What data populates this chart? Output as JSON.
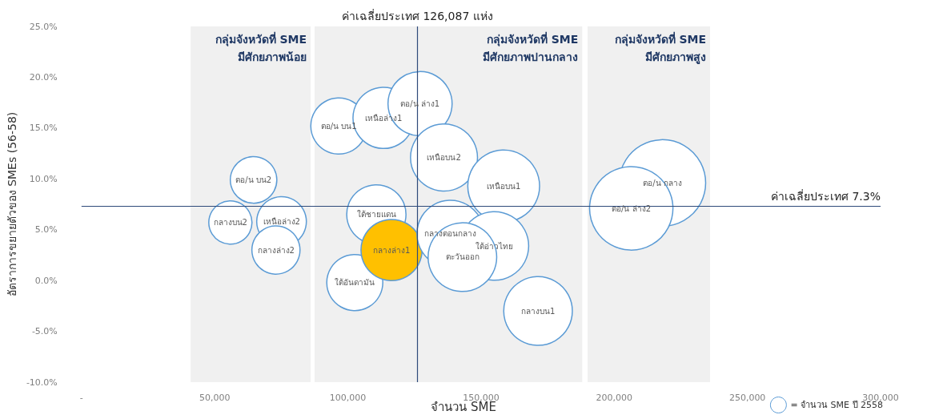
{
  "chart_data": {
    "type": "bubble",
    "ylabel": "อัตราการขยายตัวของ SMEs (56-58)",
    "xlim": [
      0,
      300000
    ],
    "xticks": [
      {
        "value": 0,
        "label": "-"
      },
      {
        "value": 50000,
        "label": "50,000"
      },
      {
        "value": 100000,
        "label": "100,000"
      },
      {
        "value": 150000,
        "label": "150,000"
      },
      {
        "value": 200000,
        "label": "200,000"
      },
      {
        "value": 250000,
        "label": "250,000"
      },
      {
        "value": 300000,
        "label": "300,000"
      }
    ],
    "ylim": [
      -10,
      25
    ],
    "yticks": [
      {
        "value": -10,
        "label": "-10.0%"
      },
      {
        "value": -5,
        "label": "-5.0%"
      },
      {
        "value": 0,
        "label": "0.0%"
      },
      {
        "value": 5,
        "label": "5.0%"
      },
      {
        "value": 10,
        "label": "10.0%"
      },
      {
        "value": 15,
        "label": "15.0%"
      },
      {
        "value": 20,
        "label": "20.0%"
      },
      {
        "value": 25,
        "label": "25.0%"
      }
    ],
    "grid": false,
    "legend": "bottom right",
    "series": [
      {
        "name": "= จำนวน SME ปี 2558",
        "color": "#5b9bd5",
        "x": [
          64600,
          55900,
          75100,
          73000,
          96600,
          113400,
          127100,
          136100,
          158500,
          102600,
          110700,
          116400,
          138500,
          155000,
          143000,
          171400,
          218100,
          206400
        ],
        "values": [
          9.9,
          5.7,
          5.8,
          3.0,
          15.2,
          16.0,
          17.4,
          12.1,
          9.3,
          -0.2,
          6.5,
          3.0,
          4.6,
          3.4,
          2.3,
          -3.0,
          9.6,
          7.1
        ],
        "sizes": [
          0.29,
          0.25,
          0.33,
          0.31,
          0.42,
          0.5,
          0.55,
          0.6,
          0.69,
          0.42,
          0.47,
          0.5,
          0.6,
          0.63,
          0.63,
          0.63,
          1,
          0.93
        ],
        "colors": [
          "#ffffff",
          "#ffffff",
          "#ffffff",
          "#ffffff",
          "#ffffff",
          "#ffffff",
          "#ffffff",
          "#ffffff",
          "#ffffff",
          "#ffffff",
          "#ffffff",
          "#ffc000",
          "#ffffff",
          "#ffffff",
          "#ffffff",
          "#ffffff",
          "#ffffff",
          "#ffffff"
        ]
      }
    ],
    "ref_lines": [
      {
        "axis": "x",
        "value": 126087,
        "label": "ค่าเฉลี่ยประเทศ 126,087 แห่ง",
        "color": "#2f4a7a"
      },
      {
        "axis": "y",
        "value": 7.3,
        "label": "ค่าเฉลี่ยประเทศ 7.3%",
        "color": "#2f4a7a"
      }
    ],
    "bands": [
      {
        "axis": "x",
        "from": 41000,
        "to": 86000,
        "label": "กลุ่มจังหวัดที่ SME\nมีศักยภาพน้อย",
        "color": "#f0f0f0"
      },
      {
        "axis": "x",
        "from": 87500,
        "to": 188000,
        "label": "กลุ่มจังหวัดที่ SME\nมีศักยภาพปานกลาง",
        "color": "#f0f0f0"
      },
      {
        "axis": "x",
        "from": 190000,
        "to": 236000,
        "label": "กลุ่มจังหวัดที่ SME\nมีศักยภาพสูง",
        "color": "#f0f0f0"
      }
    ],
    "annotations": [
      "จำนวน SME",
      {
        "text": "ตอ/น บน2",
        "x": 64600,
        "y": 9.9
      },
      {
        "text": "กลางบน2",
        "x": 55900,
        "y": 5.7
      },
      {
        "text": "เหนือล่าง2",
        "x": 75100,
        "y": 5.8
      },
      {
        "text": "กลางล่าง2",
        "x": 73000,
        "y": 3.0
      },
      {
        "text": "ตอ/น บน1",
        "x": 96600,
        "y": 15.2
      },
      {
        "text": "เหนือล่าง1",
        "x": 113400,
        "y": 16.0
      },
      {
        "text": "ตอ/น ล่าง1",
        "x": 127100,
        "y": 17.4
      },
      {
        "text": "เหนือบน2",
        "x": 136100,
        "y": 12.1
      },
      {
        "text": "เหนือบน1",
        "x": 158500,
        "y": 9.3
      },
      {
        "text": "ใต้อันดามัน",
        "x": 102600,
        "y": -0.2
      },
      {
        "text": "ใต้ชายแดน",
        "x": 110700,
        "y": 6.5
      },
      {
        "text": "กลางล่าง1",
        "x": 116400,
        "y": 3.0
      },
      {
        "text": "กลางตอนกลาง",
        "x": 138500,
        "y": 4.6
      },
      {
        "text": "ใต้อ่าวไทย",
        "x": 155000,
        "y": 3.4
      },
      {
        "text": "ตะวันออก",
        "x": 143000,
        "y": 2.3
      },
      {
        "text": "กลางบน1",
        "x": 171400,
        "y": -3.0
      },
      {
        "text": "ตอ/น กลาง",
        "x": 218100,
        "y": 9.6
      },
      {
        "text": "ตอ/น ล่าง2",
        "x": 206400,
        "y": 7.1
      }
    ]
  }
}
